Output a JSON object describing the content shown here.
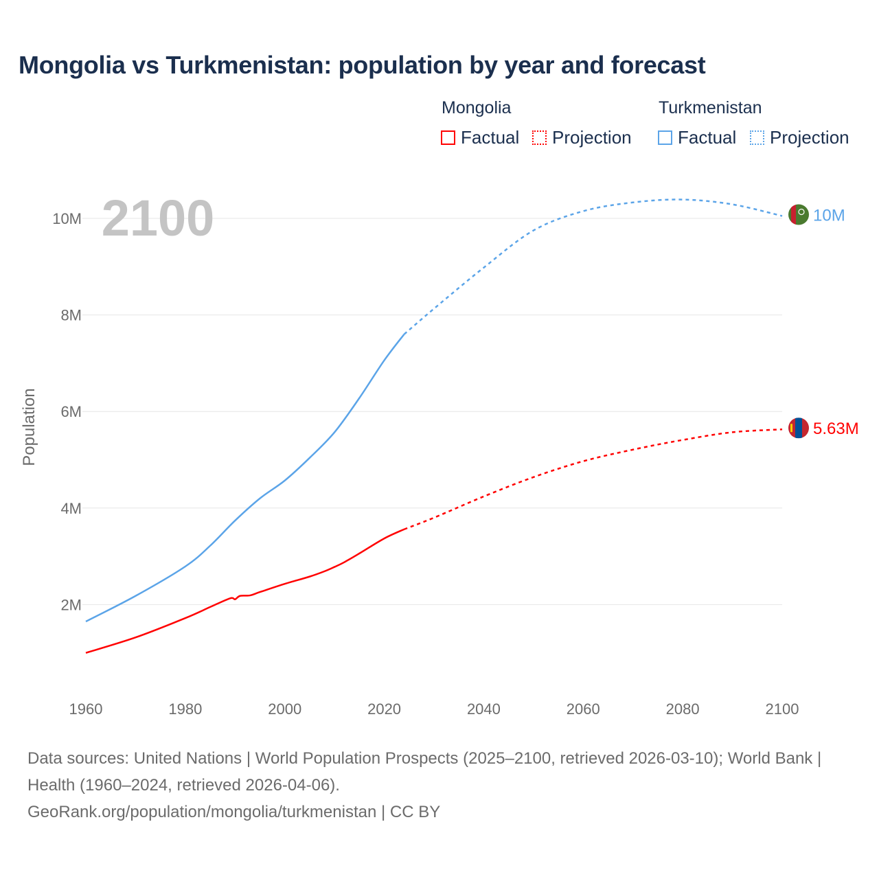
{
  "chart_data": {
    "type": "line",
    "title": "Mongolia vs Turkmenistan: population by year and forecast",
    "ylabel": "Population",
    "xlabel": "",
    "xlim": [
      1960,
      2100
    ],
    "ylim": [
      0,
      10.5
    ],
    "y_ticks": [
      {
        "v": 2,
        "label": "2M"
      },
      {
        "v": 4,
        "label": "4M"
      },
      {
        "v": 6,
        "label": "6M"
      },
      {
        "v": 8,
        "label": "8M"
      },
      {
        "v": 10,
        "label": "10M"
      }
    ],
    "x_ticks": [
      {
        "v": 1960,
        "label": "1960"
      },
      {
        "v": 1980,
        "label": "1980"
      },
      {
        "v": 2000,
        "label": "2000"
      },
      {
        "v": 2020,
        "label": "2020"
      },
      {
        "v": 2040,
        "label": "2040"
      },
      {
        "v": 2060,
        "label": "2060"
      },
      {
        "v": 2080,
        "label": "2080"
      },
      {
        "v": 2100,
        "label": "2100"
      }
    ],
    "grid": true,
    "current_year_label": "2100",
    "legend": {
      "placement": "top-right",
      "groups": [
        {
          "name": "Mongolia",
          "factual": "Factual",
          "projection": "Projection"
        },
        {
          "name": "Turkmenistan",
          "factual": "Factual",
          "projection": "Projection"
        }
      ]
    },
    "series": [
      {
        "name": "Mongolia",
        "color": "#ff0000",
        "end_label": "5.63M",
        "factual": [
          [
            1960,
            1.0
          ],
          [
            1970,
            1.32
          ],
          [
            1980,
            1.72
          ],
          [
            1985,
            1.95
          ],
          [
            1989,
            2.13
          ],
          [
            1990,
            2.11
          ],
          [
            1991,
            2.18
          ],
          [
            1993,
            2.19
          ],
          [
            1995,
            2.26
          ],
          [
            2000,
            2.43
          ],
          [
            2005,
            2.58
          ],
          [
            2008,
            2.69
          ],
          [
            2010,
            2.78
          ],
          [
            2012,
            2.88
          ],
          [
            2015,
            3.06
          ],
          [
            2020,
            3.37
          ],
          [
            2024,
            3.56
          ]
        ],
        "projection": [
          [
            2024,
            3.56
          ],
          [
            2030,
            3.8
          ],
          [
            2040,
            4.24
          ],
          [
            2050,
            4.64
          ],
          [
            2060,
            4.97
          ],
          [
            2070,
            5.21
          ],
          [
            2080,
            5.41
          ],
          [
            2090,
            5.57
          ],
          [
            2100,
            5.63
          ]
        ]
      },
      {
        "name": "Turkmenistan",
        "color": "#5ba4e8",
        "end_label": "10M",
        "factual": [
          [
            1960,
            1.65
          ],
          [
            1970,
            2.18
          ],
          [
            1980,
            2.79
          ],
          [
            1985,
            3.22
          ],
          [
            1990,
            3.74
          ],
          [
            1995,
            4.2
          ],
          [
            2000,
            4.57
          ],
          [
            2005,
            5.04
          ],
          [
            2010,
            5.57
          ],
          [
            2015,
            6.28
          ],
          [
            2020,
            7.06
          ],
          [
            2024,
            7.6
          ]
        ],
        "projection": [
          [
            2024,
            7.6
          ],
          [
            2030,
            8.13
          ],
          [
            2040,
            8.98
          ],
          [
            2050,
            9.75
          ],
          [
            2060,
            10.15
          ],
          [
            2070,
            10.33
          ],
          [
            2080,
            10.39
          ],
          [
            2090,
            10.29
          ],
          [
            2100,
            10.05
          ]
        ]
      }
    ]
  },
  "footer": {
    "sources": "Data sources: United Nations | World Population Prospects (2025–2100, retrieved 2026-03-10); World Bank | Health (1960–2024, retrieved 2026-04-06).",
    "credit": "GeoRank.org/population/mongolia/turkmenistan | CC BY"
  }
}
